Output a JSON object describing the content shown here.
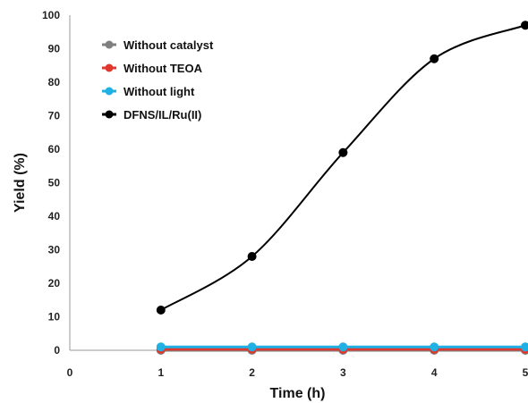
{
  "chart_data": {
    "type": "line",
    "xlabel": "Time (h)",
    "ylabel": "Yield (%)",
    "xlim": [
      0,
      5
    ],
    "ylim": [
      0,
      100
    ],
    "xticks": [
      0,
      1,
      2,
      3,
      4,
      5
    ],
    "yticks": [
      0,
      10,
      20,
      30,
      40,
      50,
      60,
      70,
      80,
      90,
      100
    ],
    "grid": false,
    "legend_position": "top-left",
    "x": [
      1,
      2,
      3,
      4,
      5
    ],
    "series": [
      {
        "name": "Without catalyst",
        "color": "#7f7f7f",
        "values": [
          0,
          0,
          0,
          0,
          0
        ]
      },
      {
        "name": "Without TEOA",
        "color": "#e0382e",
        "values": [
          0.3,
          0.3,
          0.3,
          0.3,
          0.3
        ]
      },
      {
        "name": "Without light",
        "color": "#21b0e4",
        "values": [
          1,
          1,
          1,
          1,
          1
        ]
      },
      {
        "name": "DFNS/IL/Ru(II)",
        "color": "#000000",
        "values": [
          12,
          28,
          59,
          87,
          97
        ]
      }
    ]
  }
}
